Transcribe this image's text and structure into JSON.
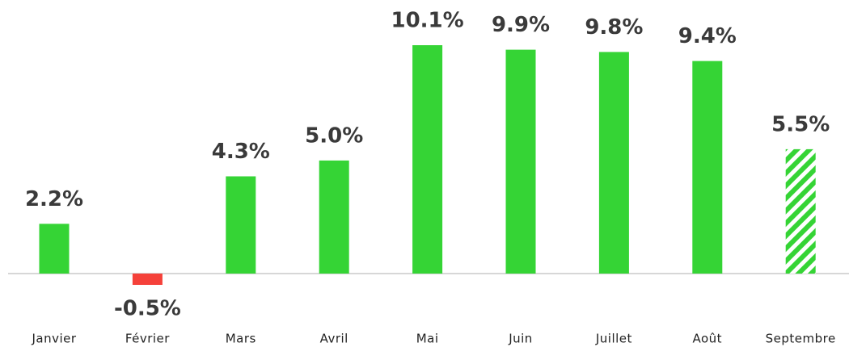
{
  "chart_data": {
    "type": "bar",
    "categories": [
      "Janvier",
      "Février",
      "Mars",
      "Avril",
      "Mai",
      "Juin",
      "Juillet",
      "Août",
      "Septembre"
    ],
    "values": [
      2.2,
      -0.5,
      4.3,
      5.0,
      10.1,
      9.9,
      9.8,
      9.4,
      5.5
    ],
    "value_labels": [
      "2.2%",
      "-0.5%",
      "4.3%",
      "5.0%",
      "10.1%",
      "9.9%",
      "9.8%",
      "9.4%",
      "5.5%"
    ],
    "colors": [
      "#35d435",
      "#f5413a",
      "#35d435",
      "#35d435",
      "#35d435",
      "#35d435",
      "#35d435",
      "#35d435",
      "#35d435"
    ],
    "hatched": [
      false,
      false,
      false,
      false,
      false,
      false,
      false,
      false,
      true
    ]
  }
}
